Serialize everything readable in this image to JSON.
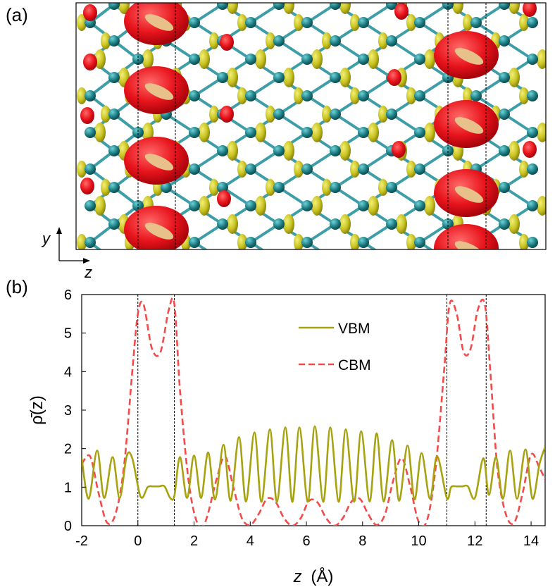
{
  "panels": {
    "a_label": "(a)",
    "b_label": "(b)"
  },
  "structure_panel": {
    "axis_y": "y",
    "axis_z": "z",
    "colors": {
      "bond": "#3e9ea8",
      "atom": "#1a7a80",
      "vbm": "#b5b21d",
      "cbm": "#e8141c",
      "frame": "#000000"
    },
    "icon": "crystal-structure-isosurface"
  },
  "chart_data": {
    "type": "line",
    "xlabel_prefix": "z",
    "xlabel_unit": "(Å)",
    "ylabel": "ρ̄(z)",
    "xlim": [
      -2,
      14.5
    ],
    "ylim": [
      0,
      6
    ],
    "xticks": [
      -2,
      0,
      2,
      4,
      6,
      8,
      10,
      12,
      14
    ],
    "yticks": [
      0,
      1,
      2,
      3,
      4,
      5,
      6
    ],
    "vlines": [
      0,
      1.3,
      11.0,
      12.4
    ],
    "legend_position": "top-right",
    "series": [
      {
        "name": "VBM",
        "color": "#a7a20f",
        "style": "solid",
        "x": [
          -2.0,
          -1.75,
          -1.45,
          -1.2,
          -0.9,
          -0.65,
          -0.4,
          -0.2,
          0.1,
          0.35,
          0.55,
          0.75,
          0.95,
          1.15,
          1.3,
          1.5,
          1.75,
          2.0,
          2.25,
          2.5,
          2.75,
          3.05,
          3.3,
          3.6,
          3.85,
          4.15,
          4.4,
          4.7,
          4.95,
          5.25,
          5.5,
          5.75,
          6.05,
          6.3,
          6.6,
          6.85,
          7.15,
          7.4,
          7.7,
          7.95,
          8.25,
          8.5,
          8.75,
          9.05,
          9.3,
          9.6,
          9.85,
          10.1,
          10.4,
          10.65,
          11.0,
          11.15,
          11.35,
          11.55,
          11.75,
          12.0,
          12.3,
          12.5,
          12.75,
          13.0,
          13.25,
          13.5,
          13.8,
          14.05,
          14.3,
          14.5
        ],
        "y": [
          1.75,
          0.7,
          1.95,
          0.72,
          1.78,
          0.72,
          1.8,
          1.75,
          0.75,
          1.0,
          1.02,
          1.02,
          1.02,
          0.72,
          0.78,
          1.78,
          0.72,
          1.82,
          0.72,
          1.9,
          0.68,
          2.1,
          0.65,
          2.3,
          0.63,
          2.42,
          0.62,
          2.5,
          0.62,
          2.55,
          0.62,
          2.55,
          0.62,
          2.58,
          0.62,
          2.55,
          0.62,
          2.5,
          0.62,
          2.45,
          0.63,
          2.4,
          0.63,
          2.22,
          0.65,
          2.08,
          0.68,
          1.88,
          0.7,
          1.8,
          0.72,
          1.0,
          1.02,
          1.02,
          1.02,
          0.72,
          1.75,
          0.8,
          1.78,
          0.7,
          1.95,
          0.7,
          1.98,
          0.7,
          1.6,
          2.05
        ]
      },
      {
        "name": "CBM",
        "color": "#f24b4b",
        "style": "dashed",
        "x": [
          -2.0,
          -1.7,
          -1.4,
          -1.1,
          -0.8,
          -0.5,
          -0.2,
          0.0,
          0.2,
          0.5,
          0.8,
          1.1,
          1.3,
          1.5,
          1.8,
          2.1,
          2.4,
          2.8,
          3.1,
          3.4,
          3.7,
          4.0,
          4.3,
          4.6,
          4.9,
          5.2,
          5.5,
          5.8,
          6.1,
          6.4,
          6.7,
          7.0,
          7.3,
          7.6,
          7.9,
          8.2,
          8.5,
          8.8,
          9.1,
          9.4,
          9.7,
          10.0,
          10.3,
          10.6,
          10.9,
          11.1,
          11.35,
          11.6,
          11.85,
          12.1,
          12.35,
          12.55,
          12.8,
          13.1,
          13.4,
          13.7,
          14.0,
          14.3,
          14.5
        ],
        "y": [
          1.6,
          1.8,
          0.85,
          0.08,
          0.3,
          1.5,
          4.0,
          5.5,
          5.75,
          4.6,
          4.5,
          5.6,
          5.75,
          3.5,
          1.2,
          0.1,
          0.1,
          1.2,
          1.8,
          1.0,
          0.2,
          0.02,
          0.3,
          0.7,
          0.62,
          0.2,
          0.0,
          0.2,
          0.65,
          0.6,
          0.2,
          0.0,
          0.2,
          0.62,
          0.7,
          0.3,
          0.02,
          0.3,
          1.2,
          1.75,
          1.0,
          0.1,
          0.15,
          1.5,
          4.0,
          5.75,
          5.5,
          4.5,
          4.6,
          5.6,
          5.75,
          4.0,
          1.5,
          0.3,
          0.08,
          0.85,
          1.85,
          1.5,
          1.2
        ]
      }
    ]
  }
}
